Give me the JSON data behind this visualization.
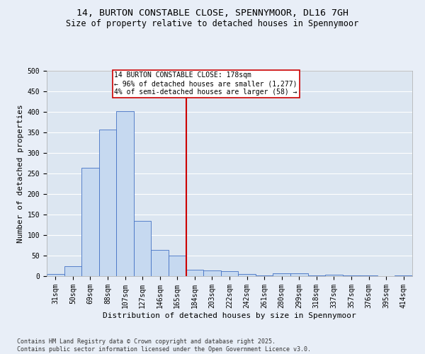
{
  "title": "14, BURTON CONSTABLE CLOSE, SPENNYMOOR, DL16 7GH",
  "subtitle": "Size of property relative to detached houses in Spennymoor",
  "xlabel": "Distribution of detached houses by size in Spennymoor",
  "ylabel": "Number of detached properties",
  "categories": [
    "31sqm",
    "50sqm",
    "69sqm",
    "88sqm",
    "107sqm",
    "127sqm",
    "146sqm",
    "165sqm",
    "184sqm",
    "203sqm",
    "222sqm",
    "242sqm",
    "261sqm",
    "280sqm",
    "299sqm",
    "318sqm",
    "337sqm",
    "357sqm",
    "376sqm",
    "395sqm",
    "414sqm"
  ],
  "values": [
    5,
    25,
    263,
    357,
    402,
    135,
    63,
    50,
    15,
    13,
    12,
    5,
    2,
    7,
    7,
    2,
    3,
    1,
    1,
    0,
    1
  ],
  "bar_color": "#c6d9f0",
  "bar_edge_color": "#4472c4",
  "vline_x": 7.5,
  "vline_color": "#cc0000",
  "annotation_text": "14 BURTON CONSTABLE CLOSE: 178sqm\n← 96% of detached houses are smaller (1,277)\n4% of semi-detached houses are larger (58) →",
  "annotation_box_color": "#ffffff",
  "annotation_box_edge": "#cc0000",
  "bg_color": "#e8eef7",
  "plot_bg_color": "#dce6f1",
  "grid_color": "#ffffff",
  "footer_text": "Contains HM Land Registry data © Crown copyright and database right 2025.\nContains public sector information licensed under the Open Government Licence v3.0.",
  "ylim": [
    0,
    500
  ],
  "yticks": [
    0,
    50,
    100,
    150,
    200,
    250,
    300,
    350,
    400,
    450,
    500
  ],
  "title_fontsize": 9.5,
  "subtitle_fontsize": 8.5,
  "label_fontsize": 8,
  "tick_fontsize": 7,
  "footer_fontsize": 6,
  "ann_fontsize": 7
}
